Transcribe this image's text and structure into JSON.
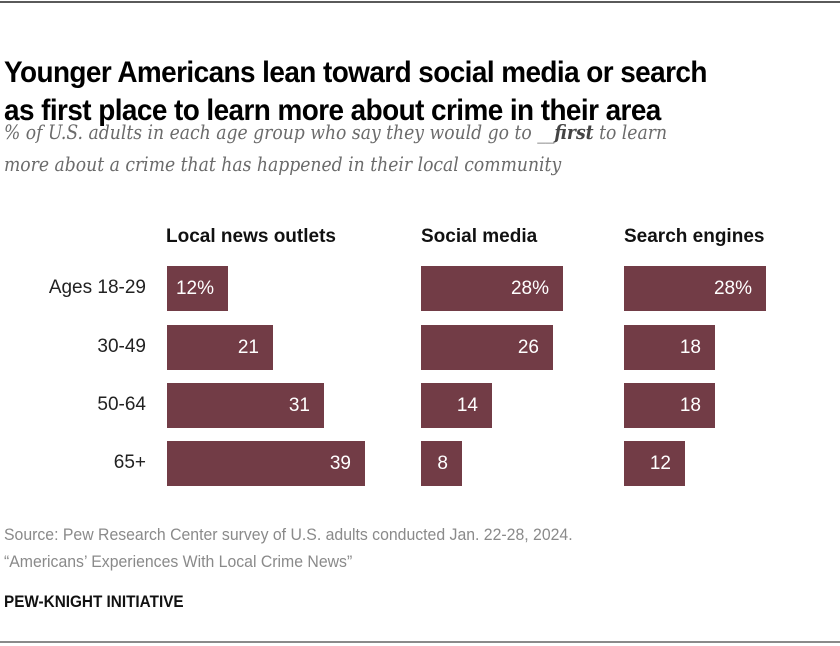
{
  "title_lines": [
    "Younger Americans lean toward social media or search",
    "as first place to learn more about crime in their area"
  ],
  "subtitle": {
    "line1_pre": "% of U.S. adults in each age group who say they would go to __",
    "line1_bold": "first",
    "line1_post": " to learn",
    "line2": "more about a crime that has happened in their local community"
  },
  "source_lines": [
    "Source: Pew Research Center survey of U.S. adults conducted Jan. 22-28, 2024.",
    "“Americans’ Experiences With Local Crime News”"
  ],
  "brand": "PEW-KNIGHT INITIATIVE",
  "colors": {
    "bar": "#723c46",
    "bar_label": "#ffffff"
  },
  "chart_data": {
    "type": "bar",
    "orientation": "horizontal",
    "title": "Younger Americans lean toward social media or search as first place to learn more about crime in their area",
    "subtitle": "% of U.S. adults in each age group who say they would go to __ first to learn more about a crime that has happened in their local community",
    "categories": [
      "Ages 18-29",
      "30-49",
      "50-64",
      "65+"
    ],
    "series": [
      {
        "name": "Local news outlets",
        "values": [
          12,
          21,
          31,
          39
        ],
        "labels": [
          "12%",
          "21",
          "31",
          "39"
        ]
      },
      {
        "name": "Social media",
        "values": [
          28,
          26,
          14,
          8
        ],
        "labels": [
          "28%",
          "26",
          "14",
          "8"
        ]
      },
      {
        "name": "Search engines",
        "values": [
          28,
          18,
          18,
          12
        ],
        "labels": [
          "28%",
          "18",
          "18",
          "12"
        ]
      }
    ],
    "unit": "%",
    "xlim": [
      0,
      40
    ],
    "grid": false,
    "legend": "column headers"
  }
}
